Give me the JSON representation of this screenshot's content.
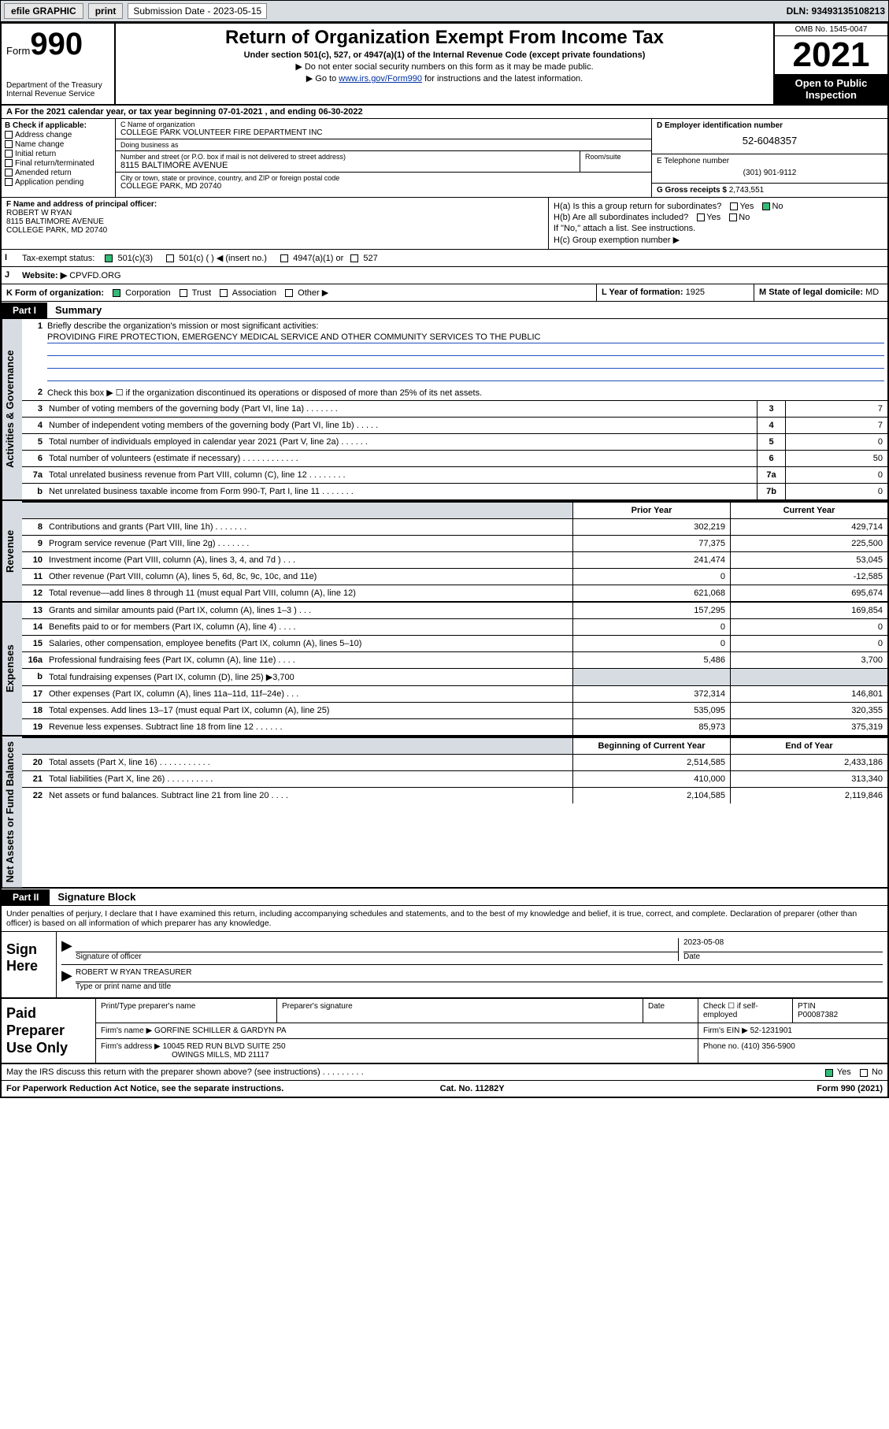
{
  "colors": {
    "topbar_bg": "#d8dde2",
    "link": "#0030a0",
    "shade": "#d6dce2",
    "check_green": "#33bb77"
  },
  "topbar": {
    "efile": "efile GRAPHIC",
    "print": "print",
    "sub_label": "Submission Date - 2023-05-15",
    "dln": "DLN: 93493135108213"
  },
  "header": {
    "form_word": "Form",
    "form_num": "990",
    "dept": "Department of the Treasury",
    "irs": "Internal Revenue Service",
    "title": "Return of Organization Exempt From Income Tax",
    "sub": "Under section 501(c), 527, or 4947(a)(1) of the Internal Revenue Code (except private foundations)",
    "note1": "▶ Do not enter social security numbers on this form as it may be made public.",
    "note2_pre": "▶ Go to ",
    "note2_link": "www.irs.gov/Form990",
    "note2_post": " for instructions and the latest information.",
    "omb": "OMB No. 1545-0047",
    "year": "2021",
    "otp": "Open to Public Inspection"
  },
  "rowA": "A For the 2021 calendar year, or tax year beginning 07-01-2021   , and ending 06-30-2022",
  "colB": {
    "heading": "B Check if applicable:",
    "items": [
      "Address change",
      "Name change",
      "Initial return",
      "Final return/terminated",
      "Amended return",
      "Application pending"
    ]
  },
  "colC": {
    "name_label": "C Name of organization",
    "name": "COLLEGE PARK VOLUNTEER FIRE DEPARTMENT INC",
    "dba_label": "Doing business as",
    "dba": "",
    "addr_label": "Number and street (or P.O. box if mail is not delivered to street address)",
    "addr": "8115 BALTIMORE AVENUE",
    "room_label": "Room/suite",
    "city_label": "City or town, state or province, country, and ZIP or foreign postal code",
    "city": "COLLEGE PARK, MD  20740"
  },
  "colDE": {
    "d_label": "D Employer identification number",
    "ein": "52-6048357",
    "e_label": "E Telephone number",
    "phone": "(301) 901-9112",
    "g_label": "G Gross receipts $",
    "gross": "2,743,551"
  },
  "colF": {
    "label": "F Name and address of principal officer:",
    "name": "ROBERT W RYAN",
    "addr1": "8115 BALTIMORE AVENUE",
    "addr2": "COLLEGE PARK, MD  20740"
  },
  "colH": {
    "ha": "H(a)  Is this a group return for subordinates?",
    "hb": "H(b)  Are all subordinates included?",
    "hb_note": "If \"No,\" attach a list. See instructions.",
    "hc": "H(c)  Group exemption number ▶",
    "yes": "Yes",
    "no": "No"
  },
  "rowI": {
    "label": "Tax-exempt status:",
    "opts": [
      "501(c)(3)",
      "501(c) (  ) ◀ (insert no.)",
      "4947(a)(1) or",
      "527"
    ]
  },
  "rowJ": {
    "label": "Website: ▶",
    "val": "CPVFD.ORG"
  },
  "rowK": {
    "label": "K Form of organization:",
    "opts": [
      "Corporation",
      "Trust",
      "Association",
      "Other ▶"
    ],
    "l_label": "L Year of formation:",
    "l_val": "1925",
    "m_label": "M State of legal domicile:",
    "m_val": "MD"
  },
  "partI": {
    "tag": "Part I",
    "title": "Summary"
  },
  "mission": {
    "line1_label": "Briefly describe the organization's mission or most significant activities:",
    "text": "PROVIDING FIRE PROTECTION, EMERGENCY MEDICAL SERVICE AND OTHER COMMUNITY SERVICES TO THE PUBLIC"
  },
  "line2": "Check this box ▶ ☐  if the organization discontinued its operations or disposed of more than 25% of its net assets.",
  "side_labels": {
    "ag": "Activities & Governance",
    "rev": "Revenue",
    "exp": "Expenses",
    "na": "Net Assets or Fund Balances"
  },
  "gov_rows": [
    {
      "n": "3",
      "t": "Number of voting members of the governing body (Part VI, line 1a)   .    .    .    .    .    .    .",
      "b": "3",
      "v": "7"
    },
    {
      "n": "4",
      "t": "Number of independent voting members of the governing body (Part VI, line 1b)   .    .    .    .    .",
      "b": "4",
      "v": "7"
    },
    {
      "n": "5",
      "t": "Total number of individuals employed in calendar year 2021 (Part V, line 2a)   .    .    .    .    .    .",
      "b": "5",
      "v": "0"
    },
    {
      "n": "6",
      "t": "Total number of volunteers (estimate if necessary)   .    .    .    .    .    .    .    .    .    .    .    .",
      "b": "6",
      "v": "50"
    },
    {
      "n": "7a",
      "t": "Total unrelated business revenue from Part VIII, column (C), line 12   .    .    .    .    .    .    .    .",
      "b": "7a",
      "v": "0"
    },
    {
      "n": "b",
      "t": "Net unrelated business taxable income from Form 990-T, Part I, line 11   .    .    .    .    .    .    .",
      "b": "7b",
      "v": "0"
    }
  ],
  "twocol_hdr": {
    "prior": "Prior Year",
    "current": "Current Year",
    "boy": "Beginning of Current Year",
    "eoy": "End of Year"
  },
  "rev_rows": [
    {
      "n": "8",
      "t": "Contributions and grants (Part VIII, line 1h)   .    .    .    .    .    .    .",
      "p": "302,219",
      "c": "429,714"
    },
    {
      "n": "9",
      "t": "Program service revenue (Part VIII, line 2g)   .    .    .    .    .    .    .",
      "p": "77,375",
      "c": "225,500"
    },
    {
      "n": "10",
      "t": "Investment income (Part VIII, column (A), lines 3, 4, and 7d )   .    .    .",
      "p": "241,474",
      "c": "53,045"
    },
    {
      "n": "11",
      "t": "Other revenue (Part VIII, column (A), lines 5, 6d, 8c, 9c, 10c, and 11e)",
      "p": "0",
      "c": "-12,585"
    },
    {
      "n": "12",
      "t": "Total revenue—add lines 8 through 11 (must equal Part VIII, column (A), line 12)",
      "p": "621,068",
      "c": "695,674"
    }
  ],
  "exp_rows": [
    {
      "n": "13",
      "t": "Grants and similar amounts paid (Part IX, column (A), lines 1–3 )   .    .    .",
      "p": "157,295",
      "c": "169,854"
    },
    {
      "n": "14",
      "t": "Benefits paid to or for members (Part IX, column (A), line 4)   .    .    .    .",
      "p": "0",
      "c": "0"
    },
    {
      "n": "15",
      "t": "Salaries, other compensation, employee benefits (Part IX, column (A), lines 5–10)",
      "p": "0",
      "c": "0"
    },
    {
      "n": "16a",
      "t": "Professional fundraising fees (Part IX, column (A), line 11e)   .    .    .    .",
      "p": "5,486",
      "c": "3,700"
    },
    {
      "n": "b",
      "t": "Total fundraising expenses (Part IX, column (D), line 25) ▶3,700",
      "p": "",
      "c": "",
      "shade": true
    },
    {
      "n": "17",
      "t": "Other expenses (Part IX, column (A), lines 11a–11d, 11f–24e)   .    .    .",
      "p": "372,314",
      "c": "146,801"
    },
    {
      "n": "18",
      "t": "Total expenses. Add lines 13–17 (must equal Part IX, column (A), line 25)",
      "p": "535,095",
      "c": "320,355"
    },
    {
      "n": "19",
      "t": "Revenue less expenses. Subtract line 18 from line 12   .    .    .    .    .    .",
      "p": "85,973",
      "c": "375,319"
    }
  ],
  "na_rows": [
    {
      "n": "20",
      "t": "Total assets (Part X, line 16)   .    .    .    .    .    .    .    .    .    .    .",
      "p": "2,514,585",
      "c": "2,433,186"
    },
    {
      "n": "21",
      "t": "Total liabilities (Part X, line 26)   .    .    .    .    .    .    .    .    .    .",
      "p": "410,000",
      "c": "313,340"
    },
    {
      "n": "22",
      "t": "Net assets or fund balances. Subtract line 21 from line 20   .    .    .    .",
      "p": "2,104,585",
      "c": "2,119,846"
    }
  ],
  "partII": {
    "tag": "Part II",
    "title": "Signature Block"
  },
  "sig": {
    "decl": "Under penalties of perjury, I declare that I have examined this return, including accompanying schedules and statements, and to the best of my knowledge and belief, it is true, correct, and complete. Declaration of preparer (other than officer) is based on all information of which preparer has any knowledge.",
    "here": "Sign Here",
    "officer_line": "Signature of officer",
    "date": "2023-05-08",
    "date_label": "Date",
    "name_title": "ROBERT W RYAN  TREASURER",
    "type_label": "Type or print name and title"
  },
  "prep": {
    "label": "Paid Preparer Use Only",
    "h_name": "Print/Type preparer's name",
    "h_sig": "Preparer's signature",
    "h_date": "Date",
    "h_self": "Check ☐ if self-employed",
    "h_ptin": "PTIN",
    "ptin": "P00087382",
    "firm_label": "Firm's name    ▶",
    "firm": "GORFINE SCHILLER & GARDYN PA",
    "ein_label": "Firm's EIN ▶",
    "ein": "52-1231901",
    "addr_label": "Firm's address ▶",
    "addr1": "10045 RED RUN BLVD SUITE 250",
    "addr2": "OWINGS MILLS, MD  21117",
    "phone_label": "Phone no.",
    "phone": "(410) 356-5900"
  },
  "footer": {
    "q": "May the IRS discuss this return with the preparer shown above? (see instructions)   .    .    .    .    .    .    .    .    .",
    "yes": "Yes",
    "no": "No",
    "pra": "For Paperwork Reduction Act Notice, see the separate instructions.",
    "cat": "Cat. No. 11282Y",
    "form": "Form 990 (2021)"
  }
}
